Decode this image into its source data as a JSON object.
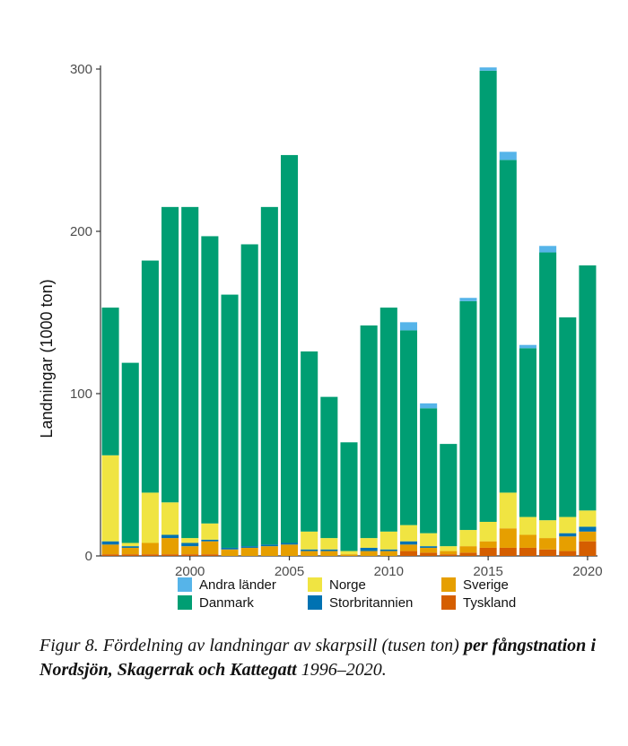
{
  "colors": {
    "Andra länder": "#56b4e9",
    "Danmark": "#009e73",
    "Norge": "#f0e442",
    "Storbritannien": "#0072b2",
    "Sverige": "#e69f00",
    "Tyskland": "#d55e00"
  },
  "caption": {
    "part1": "Figur 8. Fördelning av landningar av skarpsill (tusen ton) ",
    "part2": "per fångstnation i Nordsjön, Skagerrak och Kattegatt",
    "part3": " 1996–2020."
  },
  "chart_data": {
    "type": "bar",
    "stacked": true,
    "ylabel": "Landningar (1000 ton)",
    "xlabel": "",
    "ylim": [
      0,
      300
    ],
    "yticks": [
      0,
      100,
      200,
      300
    ],
    "xticks": [
      2000,
      2005,
      2010,
      2015,
      2020
    ],
    "grid": false,
    "legend_position": "bottom",
    "categories": [
      1996,
      1997,
      1998,
      1999,
      2000,
      2001,
      2002,
      2003,
      2004,
      2005,
      2006,
      2007,
      2008,
      2009,
      2010,
      2011,
      2012,
      2013,
      2014,
      2015,
      2016,
      2017,
      2018,
      2019,
      2020
    ],
    "series": [
      {
        "name": "Tyskland",
        "values": [
          1,
          1,
          1,
          1,
          1,
          1,
          0,
          0,
          0,
          0,
          0,
          0,
          0,
          0,
          0,
          3,
          2,
          1,
          2,
          5,
          5,
          5,
          4,
          3,
          9
        ]
      },
      {
        "name": "Sverige",
        "values": [
          6,
          4,
          7,
          10,
          5,
          8,
          4,
          5,
          6,
          7,
          3,
          3,
          1,
          3,
          3,
          4,
          3,
          2,
          4,
          4,
          12,
          8,
          7,
          9,
          6
        ]
      },
      {
        "name": "Storbritannien",
        "values": [
          2,
          1,
          0,
          2,
          2,
          1,
          1,
          1,
          1,
          1,
          1,
          1,
          0,
          2,
          1,
          2,
          1,
          0,
          0,
          0,
          0,
          0,
          0,
          2,
          3
        ]
      },
      {
        "name": "Norge",
        "values": [
          53,
          2,
          31,
          20,
          3,
          10,
          0,
          0,
          0,
          0,
          11,
          7,
          2,
          6,
          11,
          10,
          8,
          3,
          10,
          12,
          22,
          11,
          11,
          10,
          10
        ]
      },
      {
        "name": "Danmark",
        "values": [
          91,
          111,
          143,
          182,
          204,
          177,
          156,
          186,
          208,
          239,
          111,
          87,
          67,
          131,
          138,
          120,
          77,
          63,
          141,
          278,
          205,
          104,
          165,
          123,
          151
        ]
      },
      {
        "name": "Andra länder",
        "values": [
          0,
          0,
          0,
          0,
          0,
          0,
          0,
          0,
          0,
          0,
          0,
          0,
          0,
          0,
          0,
          5,
          3,
          0,
          2,
          2,
          5,
          2,
          4,
          0,
          0
        ]
      }
    ],
    "legend_order": [
      "Andra länder",
      "Danmark",
      "Norge",
      "Storbritannien",
      "Sverige",
      "Tyskland"
    ]
  }
}
